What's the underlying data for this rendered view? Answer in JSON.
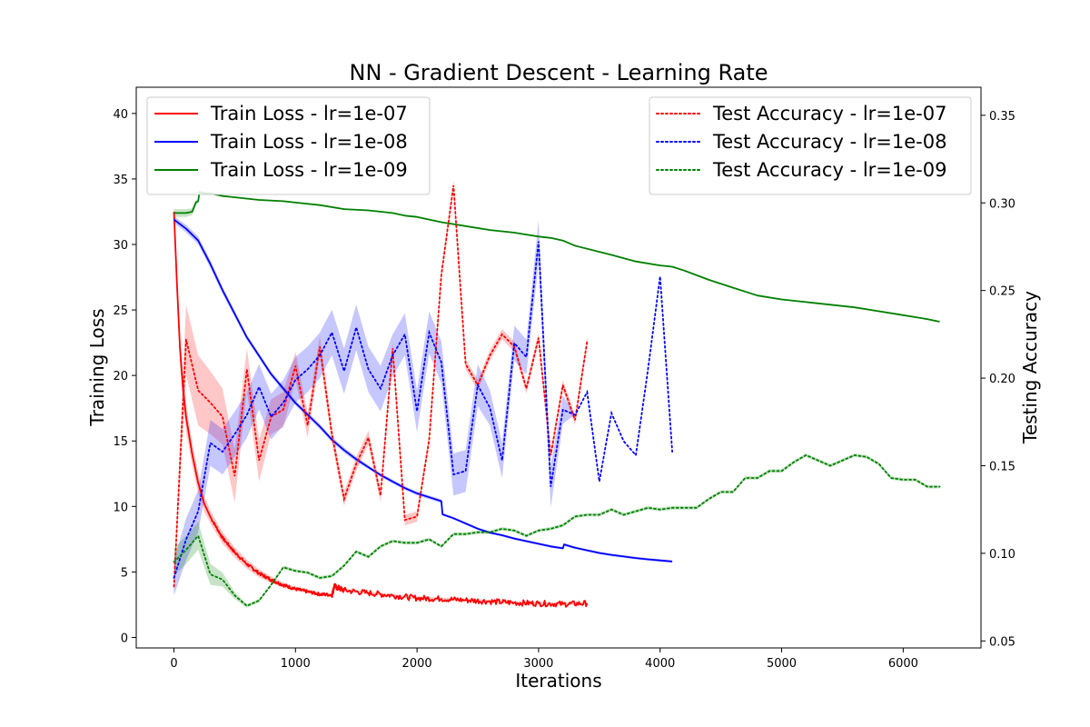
{
  "chart_data": {
    "type": "line",
    "title": "NN - Gradient Descent - Learning Rate",
    "xlabel": "Iterations",
    "ylabel": "Training Loss",
    "y2label": "Testing Accuracy",
    "xlim": [
      -310,
      6640
    ],
    "ylim": [
      -0.8,
      42
    ],
    "y2lim": [
      0.046,
      0.366
    ],
    "xticks": [
      0,
      1000,
      2000,
      3000,
      4000,
      5000,
      6000
    ],
    "yticks": [
      0,
      5,
      10,
      15,
      20,
      25,
      30,
      35,
      40
    ],
    "y2ticks": [
      0.05,
      0.1,
      0.15,
      0.2,
      0.25,
      0.3,
      0.35
    ],
    "y2tick_labels": [
      "0.05",
      "0.10",
      "0.15",
      "0.20",
      "0.25",
      "0.30",
      "0.35"
    ],
    "grid": false,
    "legend_left_placement": "upper-left",
    "legend_right_placement": "upper-right",
    "train_series": [
      {
        "name": "Train Loss - lr=1e-07",
        "color": "#ff0000",
        "style": "solid",
        "noisy": true,
        "x": [
          0,
          25,
          50,
          75,
          100,
          150,
          200,
          250,
          300,
          400,
          500,
          600,
          700,
          800,
          900,
          1000,
          1100,
          1200,
          1300,
          1320,
          1400,
          1600,
          1800,
          2000,
          2200,
          2400,
          2600,
          2800,
          3000,
          3200,
          3400
        ],
        "y": [
          32.5,
          27,
          22,
          19,
          16.8,
          14,
          11.8,
          10.2,
          9.2,
          7.6,
          6.5,
          5.6,
          4.9,
          4.4,
          4.0,
          3.7,
          3.5,
          3.3,
          3.25,
          3.9,
          3.6,
          3.4,
          3.2,
          3.0,
          2.95,
          2.85,
          2.75,
          2.65,
          2.6,
          2.55,
          2.6
        ],
        "band": [
          0.4,
          0.9,
          1.1,
          1.2,
          1.1,
          0.9,
          0.8,
          0.6,
          0.5,
          0.45,
          0.4,
          0.35,
          0.3,
          0.25,
          0.2,
          0.15,
          0.12,
          0.1,
          0.1,
          0.1,
          0.1,
          0.1,
          0.1,
          0.1,
          0.1,
          0.1,
          0.1,
          0.1,
          0.1,
          0.1,
          0.1
        ]
      },
      {
        "name": "Train Loss - lr=1e-08",
        "color": "#0000ff",
        "style": "solid",
        "noisy": false,
        "x": [
          0,
          100,
          200,
          300,
          400,
          500,
          600,
          700,
          800,
          900,
          1000,
          1100,
          1200,
          1300,
          1400,
          1500,
          1600,
          1700,
          1800,
          1900,
          2000,
          2100,
          2200,
          2210,
          2300,
          2400,
          2500,
          2600,
          2700,
          2800,
          2900,
          3000,
          3100,
          3200,
          3210,
          3300,
          3400,
          3500,
          3600,
          3700,
          3800,
          3900,
          4000,
          4100
        ],
        "y": [
          31.9,
          31.2,
          30.3,
          28.5,
          26.5,
          24.7,
          22.9,
          21.5,
          20.1,
          19.0,
          17.9,
          17.0,
          16.1,
          15.1,
          14.3,
          13.6,
          13.0,
          12.4,
          11.9,
          11.4,
          11.0,
          10.7,
          10.4,
          9.4,
          9.1,
          8.7,
          8.3,
          8.0,
          7.8,
          7.55,
          7.35,
          7.15,
          6.95,
          6.8,
          7.1,
          6.85,
          6.65,
          6.45,
          6.3,
          6.18,
          6.06,
          5.96,
          5.88,
          5.8
        ],
        "band": [
          0.25,
          0.3,
          0.3,
          0.3,
          0.25,
          0.25,
          0.2,
          0.2,
          0.2,
          0.2,
          0.2,
          0.2,
          0.2,
          0.2,
          0.2,
          0.2,
          0.15,
          0.15,
          0.15,
          0.15,
          0.15,
          0.15,
          0.15,
          0.1,
          0.1,
          0.1,
          0.1,
          0.1,
          0.1,
          0.1,
          0.1,
          0.1,
          0.1,
          0.1,
          0.1,
          0.1,
          0.1,
          0.1,
          0.1,
          0.1,
          0.1,
          0.1,
          0.1,
          0.1
        ]
      },
      {
        "name": "Train Loss - lr=1e-09",
        "color": "#008000",
        "style": "solid",
        "noisy": false,
        "x": [
          0,
          100,
          150,
          180,
          200,
          210,
          250,
          300,
          400,
          500,
          700,
          900,
          1000,
          1200,
          1400,
          1600,
          1800,
          1900,
          2000,
          2200,
          2400,
          2600,
          2800,
          3000,
          3100,
          3200,
          3300,
          3600,
          3800,
          4000,
          4100,
          4200,
          4400,
          4600,
          4800,
          5000,
          5200,
          5400,
          5600,
          5800,
          6000,
          6200,
          6300
        ],
        "y": [
          32.4,
          32.4,
          32.5,
          33.2,
          33.3,
          34.0,
          33.9,
          33.9,
          33.7,
          33.6,
          33.4,
          33.3,
          33.2,
          33.0,
          32.7,
          32.6,
          32.4,
          32.2,
          32.1,
          31.7,
          31.4,
          31.1,
          30.9,
          30.6,
          30.5,
          30.3,
          29.9,
          29.2,
          28.7,
          28.4,
          28.3,
          28.0,
          27.3,
          26.7,
          26.1,
          25.8,
          25.6,
          25.4,
          25.2,
          24.9,
          24.6,
          24.3,
          24.1
        ],
        "band": [
          0.3,
          0.3,
          0.25,
          0.2,
          0.15,
          0.1,
          0.1,
          0.1,
          0.05,
          0.05,
          0.05,
          0.05,
          0.05,
          0.05,
          0.05,
          0.05,
          0.05,
          0.05,
          0.05,
          0.05,
          0.05,
          0.05,
          0.05,
          0.05,
          0.05,
          0.05,
          0.05,
          0.05,
          0.05,
          0.05,
          0.05,
          0.05,
          0.05,
          0.05,
          0.05,
          0.05,
          0.05,
          0.05,
          0.05,
          0.05,
          0.05,
          0.05,
          0.05
        ]
      }
    ],
    "test_series": [
      {
        "name": "Test Accuracy - lr=1e-07",
        "color": "#ff0000",
        "style": "dotted",
        "x": [
          0,
          100,
          200,
          300,
          400,
          500,
          600,
          700,
          800,
          900,
          1000,
          1100,
          1200,
          1300,
          1400,
          1500,
          1600,
          1700,
          1800,
          1900,
          2000,
          2100,
          2200,
          2300,
          2400,
          2500,
          2600,
          2700,
          2800,
          2900,
          3000,
          3100,
          3200,
          3300,
          3400
        ],
        "y": [
          0.081,
          0.222,
          0.193,
          0.186,
          0.178,
          0.144,
          0.205,
          0.153,
          0.178,
          0.182,
          0.207,
          0.173,
          0.218,
          0.168,
          0.131,
          0.151,
          0.166,
          0.133,
          0.217,
          0.119,
          0.121,
          0.165,
          0.259,
          0.31,
          0.208,
          0.196,
          0.213,
          0.225,
          0.218,
          0.194,
          0.223,
          0.156,
          0.196,
          0.176,
          0.221
        ],
        "band": [
          0.004,
          0.02,
          0.02,
          0.018,
          0.016,
          0.015,
          0.012,
          0.012,
          0.01,
          0.01,
          0.008,
          0.007,
          0.006,
          0.005,
          0.004,
          0.004,
          0.004,
          0.004,
          0.003,
          0.003,
          0.003,
          0.003,
          0.003,
          0.003,
          0.003,
          0.003,
          0.003,
          0.003,
          0.003,
          0.003,
          0.003,
          0.003,
          0.003,
          0.003,
          0.003
        ]
      },
      {
        "name": "Test Accuracy - lr=1e-08",
        "color": "#0000ff",
        "style": "dotted",
        "x": [
          0,
          100,
          200,
          300,
          400,
          500,
          600,
          700,
          800,
          900,
          1000,
          1100,
          1200,
          1300,
          1400,
          1500,
          1600,
          1700,
          1800,
          1900,
          2000,
          2100,
          2200,
          2300,
          2400,
          2500,
          2600,
          2700,
          2800,
          2900,
          3000,
          3100,
          3200,
          3300,
          3400,
          3500,
          3600,
          3700,
          3800,
          3900,
          4000,
          4100
        ],
        "y": [
          0.086,
          0.108,
          0.124,
          0.163,
          0.158,
          0.168,
          0.179,
          0.195,
          0.178,
          0.186,
          0.199,
          0.205,
          0.213,
          0.226,
          0.204,
          0.229,
          0.205,
          0.194,
          0.213,
          0.225,
          0.181,
          0.226,
          0.209,
          0.145,
          0.147,
          0.196,
          0.183,
          0.153,
          0.22,
          0.212,
          0.278,
          0.138,
          0.182,
          0.179,
          0.192,
          0.141,
          0.18,
          0.164,
          0.156,
          0.205,
          0.258,
          0.158
        ],
        "band": [
          0.01,
          0.012,
          0.012,
          0.013,
          0.013,
          0.013,
          0.013,
          0.013,
          0.013,
          0.013,
          0.013,
          0.013,
          0.013,
          0.013,
          0.013,
          0.013,
          0.013,
          0.013,
          0.012,
          0.012,
          0.012,
          0.012,
          0.012,
          0.012,
          0.012,
          0.012,
          0.01,
          0.01,
          0.01,
          0.01,
          0.012,
          0.012,
          0.008,
          0.0,
          0.0,
          0.0,
          0.0,
          0.0,
          0.0,
          0.0,
          0.0,
          0.0
        ]
      },
      {
        "name": "Test Accuracy - lr=1e-09",
        "color": "#008000",
        "style": "dotted",
        "x": [
          0,
          100,
          200,
          300,
          400,
          500,
          600,
          700,
          800,
          900,
          1000,
          1100,
          1200,
          1300,
          1400,
          1500,
          1600,
          1700,
          1800,
          1900,
          2000,
          2100,
          2200,
          2300,
          2400,
          2500,
          2600,
          2700,
          2800,
          2900,
          3000,
          3100,
          3200,
          3300,
          3400,
          3500,
          3600,
          3700,
          3800,
          3900,
          4000,
          4100,
          4200,
          4300,
          4400,
          4500,
          4600,
          4700,
          4800,
          4900,
          5000,
          5100,
          5200,
          5300,
          5400,
          5500,
          5600,
          5700,
          5800,
          5900,
          6000,
          6100,
          6200,
          6300
        ],
        "y": [
          0.095,
          0.102,
          0.11,
          0.088,
          0.085,
          0.076,
          0.07,
          0.073,
          0.082,
          0.092,
          0.09,
          0.089,
          0.086,
          0.087,
          0.093,
          0.101,
          0.098,
          0.104,
          0.107,
          0.106,
          0.106,
          0.108,
          0.104,
          0.111,
          0.111,
          0.112,
          0.112,
          0.114,
          0.113,
          0.11,
          0.113,
          0.114,
          0.116,
          0.121,
          0.122,
          0.122,
          0.125,
          0.122,
          0.124,
          0.126,
          0.125,
          0.126,
          0.126,
          0.126,
          0.131,
          0.135,
          0.135,
          0.143,
          0.143,
          0.147,
          0.147,
          0.152,
          0.156,
          0.153,
          0.15,
          0.153,
          0.156,
          0.155,
          0.151,
          0.143,
          0.142,
          0.142,
          0.138,
          0.138
        ],
        "band": [
          0.008,
          0.008,
          0.008,
          0.006,
          0.004,
          0.002,
          0.001,
          0.001,
          0.001,
          0.001,
          0.001,
          0.001,
          0.001,
          0.001,
          0.001,
          0.001,
          0.001,
          0.001,
          0.001,
          0.001,
          0.001,
          0.001,
          0.001,
          0.001,
          0.001,
          0.001,
          0.001,
          0.001,
          0.001,
          0.001,
          0.001,
          0.001,
          0.001,
          0.001,
          0.001,
          0.001,
          0.001,
          0.001,
          0.001,
          0.001,
          0.001,
          0.001,
          0.001,
          0.001,
          0.001,
          0.001,
          0.001,
          0.001,
          0.001,
          0.001,
          0.001,
          0.001,
          0.001,
          0.001,
          0.001,
          0.001,
          0.001,
          0.001,
          0.001,
          0.001,
          0.001,
          0.001,
          0.001,
          0.001
        ]
      }
    ]
  }
}
